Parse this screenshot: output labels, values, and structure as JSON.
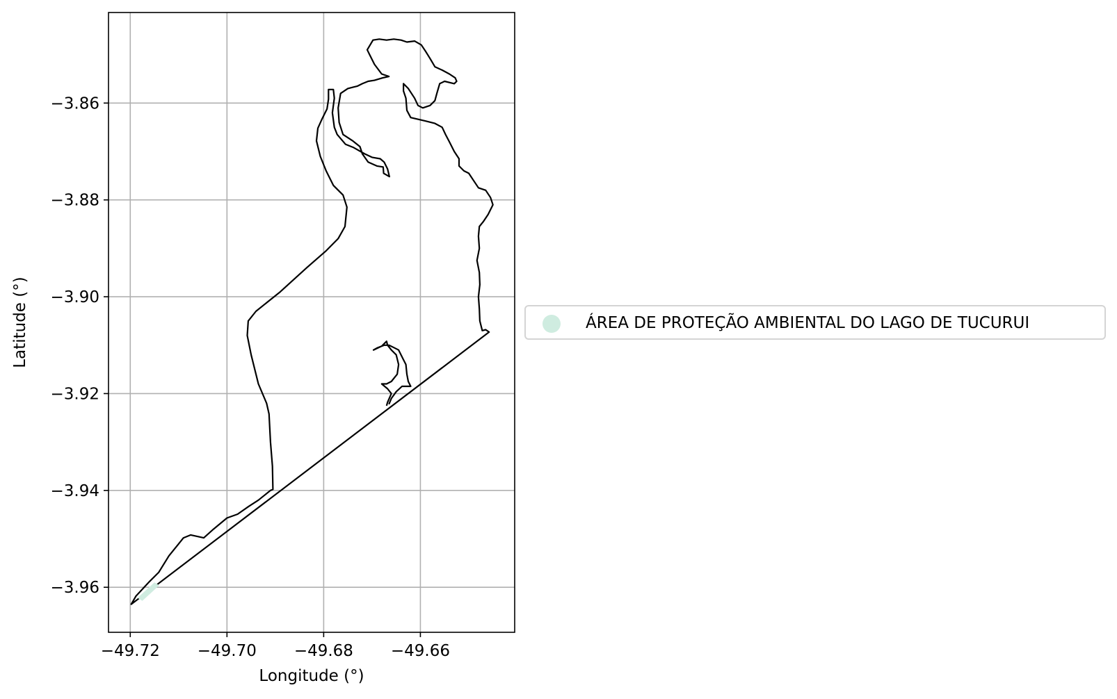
{
  "chart_data": {
    "type": "map",
    "xlabel": "Longitude (°)",
    "ylabel": "Latitude (°)",
    "xlim": [
      -49.7245,
      -49.6405
    ],
    "ylim": [
      -3.9693,
      -3.8413
    ],
    "x_ticks": [
      -49.72,
      -49.7,
      -49.68,
      -49.66
    ],
    "x_tick_labels": [
      "−49.72",
      "−49.70",
      "−49.68",
      "−49.66"
    ],
    "y_ticks": [
      -3.86,
      -3.88,
      -3.9,
      -3.92,
      -3.94,
      -3.96
    ],
    "y_tick_labels": [
      "−3.86",
      "−3.88",
      "−3.90",
      "−3.92",
      "−3.94",
      "−3.96"
    ],
    "grid": true,
    "legend": {
      "placement": "outside-right",
      "entries": [
        {
          "label": "ÁREA DE PROTEÇÃO AMBIENTAL DO LAGO DE TUCURUI",
          "color": "#cfece0"
        }
      ]
    },
    "boundary_color": "#000000",
    "fill_color": "#cfece0",
    "boundary": [
      [
        -49.7198,
        -3.9635
      ],
      [
        -49.7188,
        -3.9618
      ],
      [
        -49.716,
        -3.9588
      ],
      [
        -49.7141,
        -3.9569
      ],
      [
        -49.712,
        -3.9535
      ],
      [
        -49.709,
        -3.9498
      ],
      [
        -49.7075,
        -3.9492
      ],
      [
        -49.7048,
        -3.9498
      ],
      [
        -49.7028,
        -3.948
      ],
      [
        -49.7,
        -3.9457
      ],
      [
        -49.6978,
        -3.9449
      ],
      [
        -49.6955,
        -3.9433
      ],
      [
        -49.6935,
        -3.942
      ],
      [
        -49.691,
        -3.94
      ],
      [
        -49.6905,
        -3.9398
      ],
      [
        -49.6906,
        -3.935
      ],
      [
        -49.691,
        -3.93
      ],
      [
        -49.6913,
        -3.9242
      ],
      [
        -49.6918,
        -3.922
      ],
      [
        -49.6935,
        -3.918
      ],
      [
        -49.695,
        -3.912
      ],
      [
        -49.6958,
        -3.908
      ],
      [
        -49.6956,
        -3.905
      ],
      [
        -49.694,
        -3.903
      ],
      [
        -49.689,
        -3.899
      ],
      [
        -49.6835,
        -3.894
      ],
      [
        -49.6795,
        -3.8905
      ],
      [
        -49.677,
        -3.888
      ],
      [
        -49.6756,
        -3.8855
      ],
      [
        -49.6752,
        -3.8815
      ],
      [
        -49.676,
        -3.879
      ],
      [
        -49.678,
        -3.877
      ],
      [
        -49.6795,
        -3.874
      ],
      [
        -49.6807,
        -3.871
      ],
      [
        -49.6815,
        -3.8678
      ],
      [
        -49.6812,
        -3.8652
      ],
      [
        -49.6803,
        -3.8632
      ],
      [
        -49.6793,
        -3.8612
      ],
      [
        -49.679,
        -3.8592
      ],
      [
        -49.679,
        -3.8572
      ],
      [
        -49.678,
        -3.8572
      ],
      [
        -49.6778,
        -3.859
      ],
      [
        -49.6782,
        -3.862
      ],
      [
        -49.6778,
        -3.865
      ],
      [
        -49.6772,
        -3.8665
      ],
      [
        -49.6755,
        -3.8685
      ],
      [
        -49.6738,
        -3.8692
      ],
      [
        -49.6715,
        -3.8705
      ],
      [
        -49.67,
        -3.8712
      ],
      [
        -49.6683,
        -3.8715
      ],
      [
        -49.6675,
        -3.8722
      ],
      [
        -49.6668,
        -3.8736
      ],
      [
        -49.6664,
        -3.8752
      ],
      [
        -49.6676,
        -3.8745
      ],
      [
        -49.6677,
        -3.8732
      ],
      [
        -49.669,
        -3.873
      ],
      [
        -49.6708,
        -3.8722
      ],
      [
        -49.672,
        -3.8705
      ],
      [
        -49.6725,
        -3.869
      ],
      [
        -49.674,
        -3.8678
      ],
      [
        -49.676,
        -3.8665
      ],
      [
        -49.6768,
        -3.864
      ],
      [
        -49.677,
        -3.861
      ],
      [
        -49.6765,
        -3.858
      ],
      [
        -49.675,
        -3.857
      ],
      [
        -49.673,
        -3.8565
      ],
      [
        -49.672,
        -3.856
      ],
      [
        -49.6708,
        -3.8555
      ],
      [
        -49.6695,
        -3.8553
      ],
      [
        -49.6678,
        -3.8548
      ],
      [
        -49.6665,
        -3.8545
      ],
      [
        -49.668,
        -3.854
      ],
      [
        -49.6695,
        -3.852
      ],
      [
        -49.6705,
        -3.85
      ],
      [
        -49.671,
        -3.849
      ],
      [
        -49.6698,
        -3.847
      ],
      [
        -49.6685,
        -3.8468
      ],
      [
        -49.667,
        -3.847
      ],
      [
        -49.6655,
        -3.8468
      ],
      [
        -49.664,
        -3.847
      ],
      [
        -49.6628,
        -3.8474
      ],
      [
        -49.6612,
        -3.8472
      ],
      [
        -49.6598,
        -3.848
      ],
      [
        -49.659,
        -3.8492
      ],
      [
        -49.658,
        -3.8508
      ],
      [
        -49.657,
        -3.8525
      ],
      [
        -49.6555,
        -3.8532
      ],
      [
        -49.654,
        -3.854
      ],
      [
        -49.6528,
        -3.8548
      ],
      [
        -49.6525,
        -3.8555
      ],
      [
        -49.653,
        -3.856
      ],
      [
        -49.655,
        -3.8555
      ],
      [
        -49.656,
        -3.856
      ],
      [
        -49.6566,
        -3.858
      ],
      [
        -49.657,
        -3.8595
      ],
      [
        -49.658,
        -3.8605
      ],
      [
        -49.6595,
        -3.861
      ],
      [
        -49.6605,
        -3.8605
      ],
      [
        -49.6612,
        -3.859
      ],
      [
        -49.6625,
        -3.857
      ],
      [
        -49.6635,
        -3.856
      ],
      [
        -49.6635,
        -3.8575
      ],
      [
        -49.663,
        -3.859
      ],
      [
        -49.6628,
        -3.8615
      ],
      [
        -49.662,
        -3.863
      ],
      [
        -49.659,
        -3.8637
      ],
      [
        -49.657,
        -3.8642
      ],
      [
        -49.6555,
        -3.865
      ],
      [
        -49.6548,
        -3.8665
      ],
      [
        -49.654,
        -3.868
      ],
      [
        -49.653,
        -3.87
      ],
      [
        -49.652,
        -3.8715
      ],
      [
        -49.652,
        -3.873
      ],
      [
        -49.651,
        -3.874
      ],
      [
        -49.65,
        -3.8745
      ],
      [
        -49.649,
        -3.876
      ],
      [
        -49.648,
        -3.8775
      ],
      [
        -49.6465,
        -3.878
      ],
      [
        -49.6455,
        -3.8795
      ],
      [
        -49.645,
        -3.881
      ],
      [
        -49.646,
        -3.883
      ],
      [
        -49.647,
        -3.8845
      ],
      [
        -49.6478,
        -3.8855
      ],
      [
        -49.648,
        -3.8875
      ],
      [
        -49.6478,
        -3.89
      ],
      [
        -49.6483,
        -3.8925
      ],
      [
        -49.6478,
        -3.895
      ],
      [
        -49.6477,
        -3.8975
      ],
      [
        -49.648,
        -3.9
      ],
      [
        -49.6478,
        -3.9025
      ],
      [
        -49.6477,
        -3.905
      ],
      [
        -49.6472,
        -3.907
      ],
      [
        -49.6465,
        -3.9068
      ],
      [
        -49.6458,
        -3.9073
      ],
      [
        -49.7198,
        -3.9635
      ]
    ],
    "inlet": [
      [
        -49.6665,
        -3.9222
      ],
      [
        -49.666,
        -3.921
      ],
      [
        -49.665,
        -3.9196
      ],
      [
        -49.6638,
        -3.9185
      ],
      [
        -49.662,
        -3.9185
      ],
      [
        -49.6625,
        -3.9175
      ],
      [
        -49.6628,
        -3.916
      ],
      [
        -49.663,
        -3.914
      ],
      [
        -49.6635,
        -3.913
      ],
      [
        -49.664,
        -3.912
      ],
      [
        -49.6645,
        -3.911
      ],
      [
        -49.6655,
        -3.9105
      ],
      [
        -49.6665,
        -3.91
      ],
      [
        -49.6675,
        -3.91
      ],
      [
        -49.669,
        -3.9106
      ],
      [
        -49.6697,
        -3.911
      ],
      [
        -49.668,
        -3.9102
      ],
      [
        -49.667,
        -3.9092
      ],
      [
        -49.6668,
        -3.91
      ],
      [
        -49.666,
        -3.911
      ],
      [
        -49.665,
        -3.912
      ],
      [
        -49.6645,
        -3.914
      ],
      [
        -49.6648,
        -3.916
      ],
      [
        -49.666,
        -3.9175
      ],
      [
        -49.667,
        -3.918
      ],
      [
        -49.668,
        -3.918
      ],
      [
        -49.6668,
        -3.919
      ],
      [
        -49.666,
        -3.92
      ],
      [
        -49.6668,
        -3.9218
      ],
      [
        -49.667,
        -3.9225
      ]
    ]
  }
}
